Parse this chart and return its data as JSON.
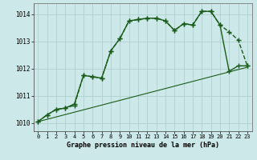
{
  "title": "Graphe pression niveau de la mer (hPa)",
  "background_color": "#cce8e8",
  "plot_bg_color": "#cce8e8",
  "grid_color": "#aacccc",
  "line_color": "#1a5c1a",
  "xlim": [
    -0.5,
    23.5
  ],
  "ylim": [
    1009.7,
    1014.4
  ],
  "yticks": [
    1010,
    1011,
    1012,
    1013,
    1014
  ],
  "xticks": [
    0,
    1,
    2,
    3,
    4,
    5,
    6,
    7,
    8,
    9,
    10,
    11,
    12,
    13,
    14,
    15,
    16,
    17,
    18,
    19,
    20,
    21,
    22,
    23
  ],
  "series": [
    {
      "x": [
        0,
        1,
        2,
        3,
        4,
        5,
        6,
        7,
        8,
        9,
        10,
        11,
        12,
        13,
        14,
        15,
        16,
        17,
        18,
        19,
        20,
        21,
        22,
        23
      ],
      "y": [
        1010.05,
        1010.3,
        1010.5,
        1010.55,
        1010.65,
        1011.75,
        1011.7,
        1011.65,
        1012.65,
        1013.1,
        1013.75,
        1013.8,
        1013.85,
        1013.85,
        1013.75,
        1013.4,
        1013.65,
        1013.6,
        1014.1,
        1014.1,
        1013.6,
        1013.35,
        1013.05,
        1012.1
      ],
      "marker": "+",
      "linestyle": "--",
      "linewidth": 1.0,
      "markersize": 4
    },
    {
      "x": [
        0,
        1,
        2,
        3,
        4,
        5,
        6,
        7,
        8,
        9,
        10,
        11,
        12,
        13,
        14,
        15,
        16,
        17,
        18,
        19,
        20,
        21,
        22,
        23
      ],
      "y": [
        1010.05,
        1010.3,
        1010.5,
        1010.55,
        1010.7,
        1011.75,
        1011.7,
        1011.65,
        1012.65,
        1013.1,
        1013.75,
        1013.8,
        1013.85,
        1013.85,
        1013.75,
        1013.4,
        1013.65,
        1013.6,
        1014.1,
        1014.1,
        1013.6,
        1011.9,
        1012.1,
        1012.1
      ],
      "marker": "+",
      "linestyle": "-",
      "linewidth": 1.0,
      "markersize": 4
    },
    {
      "x": [
        0,
        23
      ],
      "y": [
        1010.05,
        1012.05
      ],
      "marker": null,
      "linestyle": "-",
      "linewidth": 0.8,
      "markersize": 0
    }
  ]
}
